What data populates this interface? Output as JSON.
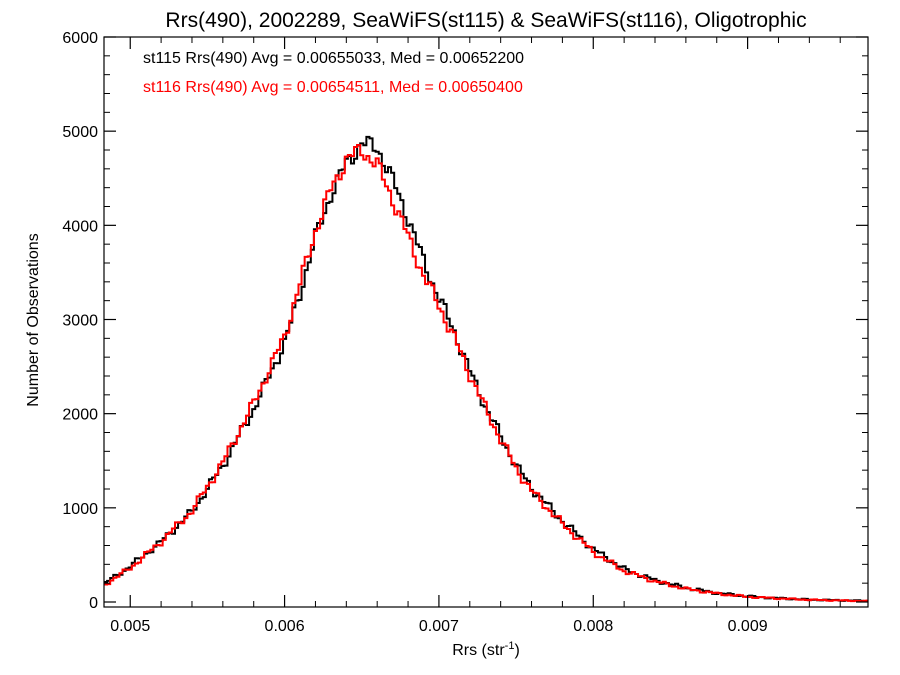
{
  "chart_data": {
    "type": "line",
    "title": "Rrs(490), 2002289, SeaWiFS(st115) & SeaWiFS(st116), Oligotrophic",
    "xlabel_base": "Rrs (str",
    "xlabel_sup": "-1",
    "xlabel_close": ")",
    "ylabel": "Number of Observations",
    "xlim": [
      0.00483,
      0.00978
    ],
    "ylim": [
      0,
      6000
    ],
    "x_ticks": [
      {
        "value": 0.005,
        "label": "0.005"
      },
      {
        "value": 0.006,
        "label": "0.006"
      },
      {
        "value": 0.007,
        "label": "0.007"
      },
      {
        "value": 0.008,
        "label": "0.008"
      },
      {
        "value": 0.009,
        "label": "0.009"
      }
    ],
    "y_ticks": [
      {
        "value": 0,
        "label": "0"
      },
      {
        "value": 1000,
        "label": "1000"
      },
      {
        "value": 2000,
        "label": "2000"
      },
      {
        "value": 3000,
        "label": "3000"
      },
      {
        "value": 4000,
        "label": "4000"
      },
      {
        "value": 5000,
        "label": "5000"
      },
      {
        "value": 6000,
        "label": "6000"
      }
    ],
    "grid": false,
    "legend": "top-left",
    "series": [
      {
        "name": "st115 Rrs(490) Avg = 0.00655033, Med = 0.00652200",
        "color": "#000000",
        "x": [
          0.00483,
          0.005,
          0.0052,
          0.0054,
          0.0056,
          0.0058,
          0.006,
          0.0061,
          0.0062,
          0.0063,
          0.0064,
          0.0065,
          0.0066,
          0.0067,
          0.0068,
          0.0069,
          0.007,
          0.0071,
          0.0072,
          0.0073,
          0.0074,
          0.0075,
          0.0076,
          0.0078,
          0.008,
          0.0082,
          0.0084,
          0.0086,
          0.0088,
          0.009,
          0.0092,
          0.0094,
          0.0096,
          0.00978
        ],
        "y": [
          190,
          380,
          640,
          960,
          1450,
          2050,
          2750,
          3280,
          3870,
          4330,
          4660,
          4870,
          4830,
          4480,
          4080,
          3620,
          3230,
          2870,
          2450,
          2080,
          1760,
          1450,
          1210,
          860,
          560,
          350,
          230,
          150,
          95,
          60,
          40,
          25,
          18,
          12
        ]
      },
      {
        "name": "st116 Rrs(490) Avg = 0.00654511, Med = 0.00650400",
        "color": "#ff0000",
        "x": [
          0.00483,
          0.005,
          0.0052,
          0.0054,
          0.0056,
          0.0058,
          0.006,
          0.0061,
          0.0062,
          0.0063,
          0.0064,
          0.0065,
          0.0066,
          0.0067,
          0.0068,
          0.0069,
          0.007,
          0.0071,
          0.0072,
          0.0073,
          0.0074,
          0.0075,
          0.0076,
          0.0078,
          0.008,
          0.0082,
          0.0084,
          0.0086,
          0.0088,
          0.009,
          0.0092,
          0.0094,
          0.0096,
          0.00978
        ],
        "y": [
          180,
          360,
          640,
          970,
          1480,
          2110,
          2820,
          3380,
          3940,
          4380,
          4700,
          4800,
          4640,
          4280,
          3880,
          3470,
          3150,
          2800,
          2420,
          2060,
          1730,
          1420,
          1180,
          830,
          530,
          330,
          220,
          140,
          90,
          55,
          38,
          24,
          16,
          10
        ]
      }
    ]
  }
}
